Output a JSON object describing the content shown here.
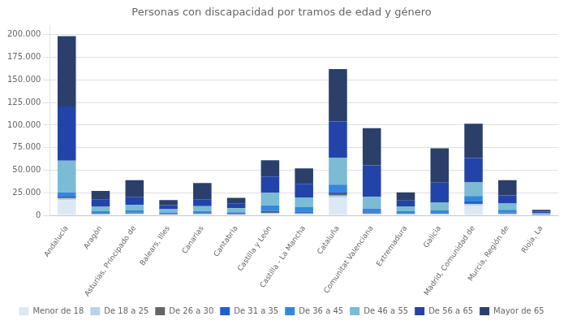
{
  "chart_data": {
    "type": "bar",
    "title": "Personas con discapacidad por tramos de edad y género",
    "categories": [
      "Andalucía",
      "Aragón",
      "Asturias, Principado de",
      "Balears, Illes",
      "Canarias",
      "Cantabria",
      "Castilla y León",
      "Castilla - La Mancha",
      "Cataluña",
      "Comunitat Valenciana",
      "Extremadura",
      "Galicia",
      "Madrid, Comunidad de",
      "Murcia, Región de",
      "Rioja, La"
    ],
    "series": [
      {
        "name": "Menor de 18",
        "color": "#dce9f5",
        "values": [
          17000,
          1000,
          1200,
          700,
          1000,
          700,
          1500,
          1200,
          20000,
          1200,
          1000,
          1000,
          11000,
          1000,
          200
        ]
      },
      {
        "name": "De 18 a 25",
        "color": "#b8d4ea",
        "values": [
          1500,
          500,
          700,
          400,
          600,
          400,
          1200,
          900,
          2000,
          800,
          600,
          700,
          1500,
          700,
          150
        ]
      },
      {
        "name": "De 26 a 30",
        "color": "#666666",
        "values": [
          1200,
          400,
          500,
          300,
          500,
          300,
          900,
          700,
          1500,
          600,
          400,
          500,
          1200,
          500,
          100
        ]
      },
      {
        "name": "De 31 a 35",
        "color": "#2060cc",
        "values": [
          1800,
          600,
          700,
          400,
          700,
          500,
          1500,
          1200,
          2500,
          900,
          600,
          700,
          1800,
          900,
          150
        ]
      },
      {
        "name": "De 36 a 45",
        "color": "#3388dd",
        "values": [
          4000,
          2000,
          2500,
          1500,
          2000,
          1500,
          6000,
          5000,
          8000,
          4000,
          2000,
          2500,
          6000,
          3000,
          500
        ]
      },
      {
        "name": "De 46 a 55",
        "color": "#7bbbd4",
        "values": [
          35000,
          5000,
          6000,
          3500,
          5500,
          4500,
          14000,
          11000,
          30000,
          13000,
          5500,
          9000,
          15000,
          7000,
          1200
        ]
      },
      {
        "name": "De 56 a 65",
        "color": "#2244aa",
        "values": [
          60000,
          8000,
          9000,
          4500,
          7500,
          5500,
          18000,
          15000,
          40000,
          35000,
          6500,
          22000,
          27000,
          9000,
          1800
        ]
      },
      {
        "name": "Mayor de 65",
        "color": "#2b3f6b",
        "values": [
          78000,
          9500,
          18500,
          5600,
          18000,
          6000,
          18000,
          17000,
          58000,
          41000,
          9000,
          38000,
          38000,
          17000,
          2100
        ]
      }
    ],
    "stacked": true,
    "ylim": [
      0,
      210000
    ],
    "yticks": [
      0,
      {
        "value": 25000,
        "label": "25.000"
      },
      {
        "value": 50000,
        "label": "50.000"
      },
      {
        "value": 75000,
        "label": "75.000"
      },
      {
        "value": 100000,
        "label": "100.000"
      },
      {
        "value": 125000,
        "label": "125.000"
      },
      {
        "value": 150000,
        "label": "150.000"
      },
      {
        "value": 175000,
        "label": "175.000"
      },
      {
        "value": 200000,
        "label": "200.000"
      }
    ],
    "grid": true,
    "legend": "bottom"
  }
}
